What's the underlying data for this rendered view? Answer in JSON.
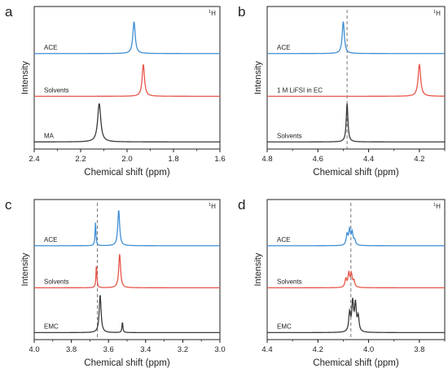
{
  "chart_data": [
    {
      "type": "line",
      "panel_label": "a",
      "nucleus_label": "1H",
      "xlabel": "Chemical shift (ppm)",
      "ylabel": "Intensity",
      "xlim": [
        2.4,
        1.6
      ],
      "x_ticks": [
        "2.4",
        "2.2",
        "2.0",
        "1.8",
        "1.6"
      ],
      "reference_line": null,
      "series": [
        {
          "name": "ACE",
          "color": "#3f8fd6",
          "peaks": [
            {
              "ppm": 1.97,
              "height": 0.75,
              "width": 0.006
            }
          ]
        },
        {
          "name": "Solvents",
          "color": "#e8564a",
          "peaks": [
            {
              "ppm": 1.93,
              "height": 0.75,
              "width": 0.006
            }
          ]
        },
        {
          "name": "MA",
          "color": "#3a3a3a",
          "peaks": [
            {
              "ppm": 2.12,
              "height": 0.9,
              "width": 0.008
            }
          ]
        }
      ]
    },
    {
      "type": "line",
      "panel_label": "b",
      "nucleus_label": "1H",
      "xlabel": "Chemical shift (ppm)",
      "ylabel": "Intensity",
      "xlim": [
        4.8,
        4.1
      ],
      "x_ticks": [
        "4.8",
        "4.6",
        "4.4",
        "4.2"
      ],
      "reference_line": 4.485,
      "series": [
        {
          "name": "ACE",
          "color": "#3f8fd6",
          "peaks": [
            {
              "ppm": 4.5,
              "height": 0.75,
              "width": 0.005
            }
          ]
        },
        {
          "name": "1 M LiFSI in EC",
          "color": "#e8564a",
          "peaks": [
            {
              "ppm": 4.2,
              "height": 0.75,
              "width": 0.006
            }
          ]
        },
        {
          "name": "Solvents",
          "color": "#3a3a3a",
          "peaks": [
            {
              "ppm": 4.485,
              "height": 0.9,
              "width": 0.004
            }
          ]
        }
      ]
    },
    {
      "type": "line",
      "panel_label": "c",
      "nucleus_label": "1H",
      "xlabel": "Chemical shift (ppm)",
      "ylabel": "Intensity",
      "xlim": [
        4.0,
        3.0
      ],
      "x_ticks": [
        "4.0",
        "3.8",
        "3.6",
        "3.4",
        "3.2",
        "3.0"
      ],
      "reference_line": 3.66,
      "series": [
        {
          "name": "ACE",
          "color": "#3f8fd6",
          "peaks": [
            {
              "ppm": 3.67,
              "height": 0.55,
              "width": 0.003
            },
            {
              "ppm": 3.545,
              "height": 0.85,
              "width": 0.006
            }
          ]
        },
        {
          "name": "Solvents",
          "color": "#e8564a",
          "peaks": [
            {
              "ppm": 3.665,
              "height": 0.55,
              "width": 0.003
            },
            {
              "ppm": 3.54,
              "height": 0.8,
              "width": 0.006
            }
          ]
        },
        {
          "name": "EMC",
          "color": "#3a3a3a",
          "peaks": [
            {
              "ppm": 3.645,
              "height": 0.9,
              "width": 0.006
            },
            {
              "ppm": 3.525,
              "height": 0.25,
              "width": 0.003
            }
          ]
        }
      ]
    },
    {
      "type": "line",
      "panel_label": "d",
      "nucleus_label": "1H",
      "xlabel": "Chemical shift (ppm)",
      "ylabel": "Intensity",
      "xlim": [
        4.4,
        3.7
      ],
      "x_ticks": [
        "4.4",
        "4.2",
        "4.0",
        "3.8"
      ],
      "reference_line": 4.07,
      "series": [
        {
          "name": "ACE",
          "color": "#3f8fd6",
          "peaks": [
            {
              "ppm": 4.085,
              "height": 0.25,
              "width": 0.004
            },
            {
              "ppm": 4.075,
              "height": 0.35,
              "width": 0.004
            },
            {
              "ppm": 4.065,
              "height": 0.3,
              "width": 0.004
            },
            {
              "ppm": 4.055,
              "height": 0.12,
              "width": 0.004
            }
          ]
        },
        {
          "name": "Solvents",
          "color": "#e8564a",
          "peaks": [
            {
              "ppm": 4.09,
              "height": 0.2,
              "width": 0.004
            },
            {
              "ppm": 4.078,
              "height": 0.32,
              "width": 0.004
            },
            {
              "ppm": 4.068,
              "height": 0.3,
              "width": 0.004
            },
            {
              "ppm": 4.058,
              "height": 0.15,
              "width": 0.004
            }
          ]
        },
        {
          "name": "EMC",
          "color": "#3a3a3a",
          "peaks": [
            {
              "ppm": 4.075,
              "height": 0.45,
              "width": 0.004
            },
            {
              "ppm": 4.063,
              "height": 0.7,
              "width": 0.004
            },
            {
              "ppm": 4.052,
              "height": 0.65,
              "width": 0.004
            },
            {
              "ppm": 4.041,
              "height": 0.35,
              "width": 0.004
            }
          ]
        }
      ]
    }
  ]
}
